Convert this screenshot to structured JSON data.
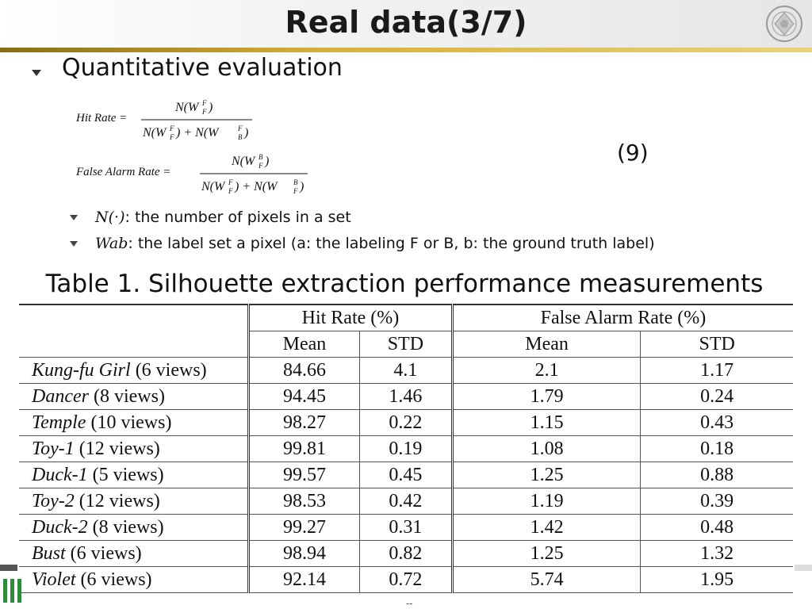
{
  "slide": {
    "title": "Real data(3/7)",
    "bullet": "Quantitative evaluation",
    "eq_number": "(9)",
    "formulas": {
      "hit_rate_label": "Hit  Rate =",
      "hit_num": "N(W_F^F)",
      "hit_den": "N(W_F^F) + N(W_B^F)",
      "far_label": "False  Alarm  Rate =",
      "far_num": "N(W_F^B)",
      "far_den": "N(W_F^F) + N(W_F^B)"
    },
    "sub_bullets": [
      {
        "symbol": "N(·)",
        "text": ": the number of pixels in a set"
      },
      {
        "symbol": "Wab",
        "text": ": the label set a pixel (a: the labeling F or B, b: the ground truth label)"
      }
    ],
    "caption": "Table 1. Silhouette extraction performance measurements",
    "page_number": "--"
  },
  "table": {
    "group_headers": [
      "Hit Rate (%)",
      "False Alarm Rate (%)"
    ],
    "sub_headers": [
      "Mean",
      "STD",
      "Mean",
      "STD"
    ],
    "rows": [
      {
        "name": "Kung-fu Girl",
        "views": "(6 views)",
        "values": [
          "84.66",
          "4.1",
          "2.1",
          "1.17"
        ]
      },
      {
        "name": "Dancer",
        "views": "(8 views)",
        "values": [
          "94.45",
          "1.46",
          "1.79",
          "0.24"
        ]
      },
      {
        "name": "Temple",
        "views": "(10 views)",
        "values": [
          "98.27",
          "0.22",
          "1.15",
          "0.43"
        ]
      },
      {
        "name": "Toy-1",
        "views": "(12 views)",
        "values": [
          "99.81",
          "0.19",
          "1.08",
          "0.18"
        ]
      },
      {
        "name": "Duck-1",
        "views": "(5 views)",
        "values": [
          "99.57",
          "0.45",
          "1.25",
          "0.88"
        ]
      },
      {
        "name": "Toy-2",
        "views": "(12 views)",
        "values": [
          "98.53",
          "0.42",
          "1.19",
          "0.39"
        ]
      },
      {
        "name": "Duck-2",
        "views": "(8 views)",
        "values": [
          "99.27",
          "0.31",
          "1.42",
          "0.48"
        ]
      },
      {
        "name": "Bust",
        "views": "(6 views)",
        "values": [
          "98.94",
          "0.82",
          "1.25",
          "1.32"
        ]
      },
      {
        "name": "Violet",
        "views": "(6 views)",
        "values": [
          "92.14",
          "0.72",
          "5.74",
          "1.95"
        ]
      }
    ]
  },
  "colors": {
    "accent_line": "#d4b23a",
    "logo_green": "#2e8b3a"
  }
}
